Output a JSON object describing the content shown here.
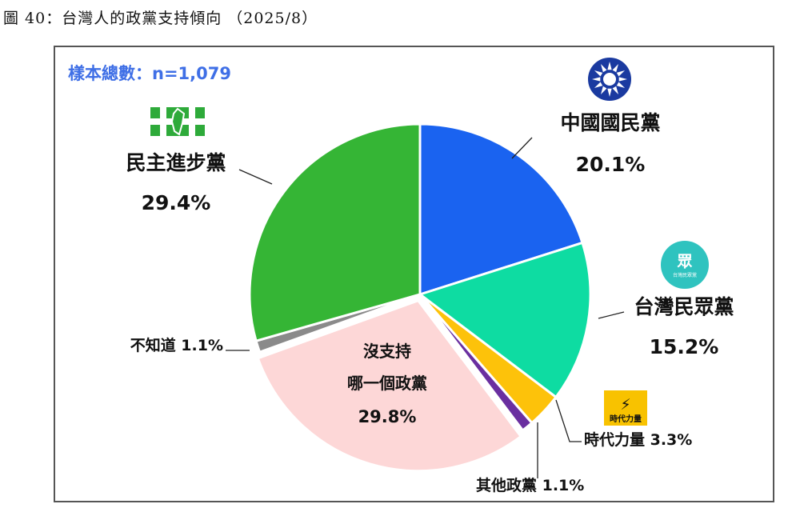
{
  "figure_title": "圖 40：台灣人的政黨支持傾向 （2025/8）",
  "sample_label": "樣本總數：n=1,079",
  "chart_data": {
    "type": "pie",
    "title": "圖 40：台灣人的政黨支持傾向 （2025/8）",
    "slices": [
      {
        "name": "中國國民黨",
        "label": "中國國民黨",
        "value": 20.1,
        "value_label": "20.1%",
        "color": "#1a63f0",
        "icon": "kmt-sun-emblem-icon"
      },
      {
        "name": "台灣民眾黨",
        "label": "台灣民眾黨",
        "value": 15.2,
        "value_label": "15.2%",
        "color": "#0edca2",
        "icon": "tpp-logo-icon",
        "icon_text": "眾",
        "icon_sub": "台灣民眾黨"
      },
      {
        "name": "時代力量",
        "label": "時代力量 3.3%",
        "value": 3.3,
        "color": "#fdc20a",
        "icon": "npp-logo-icon",
        "icon_text": "時代力量"
      },
      {
        "name": "其他政黨",
        "label": "其他政黨 1.1%",
        "value": 1.1,
        "color": "#6a2fa0"
      },
      {
        "name": "沒支持哪一個政黨",
        "label_lines": [
          "沒支持",
          "哪一個政黨"
        ],
        "value": 29.8,
        "value_label": "29.8%",
        "color": "#fdd7d7"
      },
      {
        "name": "不知道",
        "label": "不知道 1.1%",
        "value": 1.1,
        "color": "#8a8a8a"
      },
      {
        "name": "民主進步黨",
        "label": "民主進步黨",
        "value": 29.4,
        "value_label": "29.4%",
        "color": "#35b535",
        "icon": "dpp-flag-icon"
      }
    ],
    "start_angle": "12 o'clock",
    "direction": "clockwise",
    "legend": "none"
  }
}
